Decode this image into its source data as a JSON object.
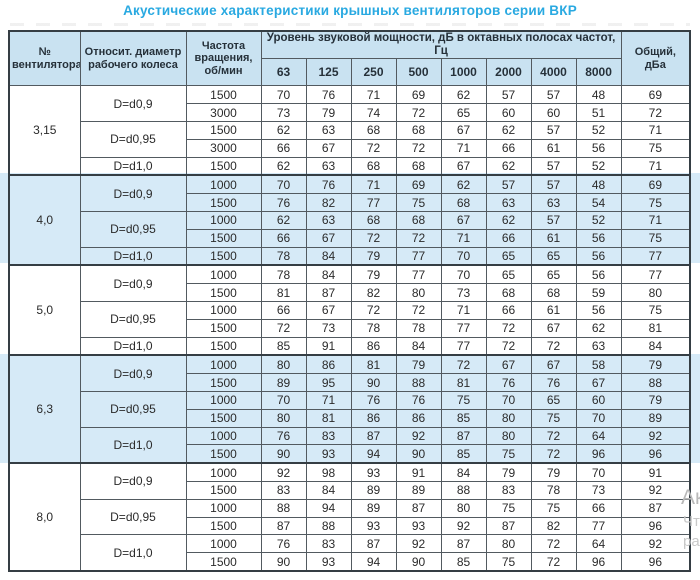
{
  "title": "Акустические характеристики крышных вентиляторов серии ВКР",
  "colors": {
    "title_accent": "#29a9e1",
    "header_bg": "#c9e2f1",
    "group_band_bg": "#d6eaf7",
    "outer_border": "#353e44",
    "inner_border": "#525a60",
    "text": "#2b2b2b",
    "watermark_gray": "#c3c3c3"
  },
  "watermark": {
    "fragments": [
      "Ак",
      "Чт",
      "ра"
    ]
  },
  "table": {
    "headers": {
      "fan_number": "№\nвентилятора",
      "rel_diameter": "Относит. диаметр\nрабочего колеса",
      "rotation_freq": "Частота\nвращения,\nоб/мин",
      "sound_power_group": "Уровень звуковой мощности, дБ в октавных полосах частот, Гц",
      "octave_bands": [
        "63",
        "125",
        "250",
        "500",
        "1000",
        "2000",
        "4000",
        "8000"
      ],
      "total": "Общий,\nдБа"
    },
    "groups": [
      {
        "fan": "3,15",
        "shaded": false,
        "diameters": [
          {
            "label": "D=d0,9",
            "rows": [
              {
                "rpm": "1500",
                "levels": [
                  "70",
                  "76",
                  "71",
                  "69",
                  "62",
                  "57",
                  "57",
                  "48"
                ],
                "total": "69"
              },
              {
                "rpm": "3000",
                "levels": [
                  "73",
                  "79",
                  "74",
                  "72",
                  "65",
                  "60",
                  "60",
                  "51"
                ],
                "total": "72"
              }
            ]
          },
          {
            "label": "D=d0,95",
            "rows": [
              {
                "rpm": "1500",
                "levels": [
                  "62",
                  "63",
                  "68",
                  "68",
                  "67",
                  "62",
                  "57",
                  "52"
                ],
                "total": "71"
              },
              {
                "rpm": "3000",
                "levels": [
                  "66",
                  "67",
                  "72",
                  "72",
                  "71",
                  "66",
                  "61",
                  "56"
                ],
                "total": "75"
              }
            ]
          },
          {
            "label": "D=d1,0",
            "rows": [
              {
                "rpm": "1500",
                "levels": [
                  "62",
                  "63",
                  "68",
                  "68",
                  "67",
                  "62",
                  "57",
                  "52"
                ],
                "total": "71"
              }
            ]
          }
        ]
      },
      {
        "fan": "4,0",
        "shaded": true,
        "diameters": [
          {
            "label": "D=d0,9",
            "rows": [
              {
                "rpm": "1000",
                "levels": [
                  "70",
                  "76",
                  "71",
                  "69",
                  "62",
                  "57",
                  "57",
                  "48"
                ],
                "total": "69"
              },
              {
                "rpm": "1500",
                "levels": [
                  "76",
                  "82",
                  "77",
                  "75",
                  "68",
                  "63",
                  "63",
                  "54"
                ],
                "total": "75"
              }
            ]
          },
          {
            "label": "D=d0,95",
            "rows": [
              {
                "rpm": "1000",
                "levels": [
                  "62",
                  "63",
                  "68",
                  "68",
                  "67",
                  "62",
                  "57",
                  "52"
                ],
                "total": "71"
              },
              {
                "rpm": "1500",
                "levels": [
                  "66",
                  "67",
                  "72",
                  "72",
                  "71",
                  "66",
                  "61",
                  "56"
                ],
                "total": "75"
              }
            ]
          },
          {
            "label": "D=d1,0",
            "rows": [
              {
                "rpm": "1500",
                "levels": [
                  "78",
                  "84",
                  "79",
                  "77",
                  "70",
                  "65",
                  "65",
                  "56"
                ],
                "total": "77"
              }
            ]
          }
        ]
      },
      {
        "fan": "5,0",
        "shaded": false,
        "diameters": [
          {
            "label": "D=d0,9",
            "rows": [
              {
                "rpm": "1000",
                "levels": [
                  "78",
                  "84",
                  "79",
                  "77",
                  "70",
                  "65",
                  "65",
                  "56"
                ],
                "total": "77"
              },
              {
                "rpm": "1500",
                "levels": [
                  "81",
                  "87",
                  "82",
                  "80",
                  "73",
                  "68",
                  "68",
                  "59"
                ],
                "total": "80"
              }
            ]
          },
          {
            "label": "D=d0,95",
            "rows": [
              {
                "rpm": "1000",
                "levels": [
                  "66",
                  "67",
                  "72",
                  "72",
                  "71",
                  "66",
                  "61",
                  "56"
                ],
                "total": "75"
              },
              {
                "rpm": "1500",
                "levels": [
                  "72",
                  "73",
                  "78",
                  "78",
                  "77",
                  "72",
                  "67",
                  "62"
                ],
                "total": "81"
              }
            ]
          },
          {
            "label": "D=d1,0",
            "rows": [
              {
                "rpm": "1500",
                "levels": [
                  "85",
                  "91",
                  "86",
                  "84",
                  "77",
                  "72",
                  "72",
                  "63"
                ],
                "total": "84"
              }
            ]
          }
        ]
      },
      {
        "fan": "6,3",
        "shaded": true,
        "diameters": [
          {
            "label": "D=d0,9",
            "rows": [
              {
                "rpm": "1000",
                "levels": [
                  "80",
                  "86",
                  "81",
                  "79",
                  "72",
                  "67",
                  "67",
                  "58"
                ],
                "total": "79"
              },
              {
                "rpm": "1500",
                "levels": [
                  "89",
                  "95",
                  "90",
                  "88",
                  "81",
                  "76",
                  "76",
                  "67"
                ],
                "total": "88"
              }
            ]
          },
          {
            "label": "D=d0,95",
            "rows": [
              {
                "rpm": "1000",
                "levels": [
                  "70",
                  "71",
                  "76",
                  "76",
                  "75",
                  "70",
                  "65",
                  "60"
                ],
                "total": "79"
              },
              {
                "rpm": "1500",
                "levels": [
                  "80",
                  "81",
                  "86",
                  "86",
                  "85",
                  "80",
                  "75",
                  "70"
                ],
                "total": "89"
              }
            ]
          },
          {
            "label": "D=d1,0",
            "rows": [
              {
                "rpm": "1000",
                "levels": [
                  "76",
                  "83",
                  "87",
                  "92",
                  "87",
                  "80",
                  "72",
                  "64"
                ],
                "total": "92"
              },
              {
                "rpm": "1500",
                "levels": [
                  "90",
                  "93",
                  "94",
                  "90",
                  "85",
                  "75",
                  "72",
                  "96"
                ],
                "total": "96"
              }
            ]
          }
        ]
      },
      {
        "fan": "8,0",
        "shaded": false,
        "diameters": [
          {
            "label": "D=d0,9",
            "rows": [
              {
                "rpm": "1000",
                "levels": [
                  "92",
                  "98",
                  "93",
                  "91",
                  "84",
                  "79",
                  "79",
                  "70"
                ],
                "total": "91"
              },
              {
                "rpm": "1500",
                "levels": [
                  "83",
                  "84",
                  "89",
                  "89",
                  "88",
                  "83",
                  "78",
                  "73"
                ],
                "total": "92"
              }
            ]
          },
          {
            "label": "D=d0,95",
            "rows": [
              {
                "rpm": "1000",
                "levels": [
                  "88",
                  "94",
                  "89",
                  "87",
                  "80",
                  "75",
                  "75",
                  "66"
                ],
                "total": "87"
              },
              {
                "rpm": "1500",
                "levels": [
                  "87",
                  "88",
                  "93",
                  "93",
                  "92",
                  "87",
                  "82",
                  "77"
                ],
                "total": "96"
              }
            ]
          },
          {
            "label": "D=d1,0",
            "rows": [
              {
                "rpm": "1000",
                "levels": [
                  "76",
                  "83",
                  "87",
                  "92",
                  "87",
                  "80",
                  "72",
                  "64"
                ],
                "total": "92"
              },
              {
                "rpm": "1500",
                "levels": [
                  "90",
                  "93",
                  "94",
                  "90",
                  "85",
                  "75",
                  "72",
                  "96"
                ],
                "total": "96"
              }
            ]
          }
        ]
      }
    ]
  }
}
